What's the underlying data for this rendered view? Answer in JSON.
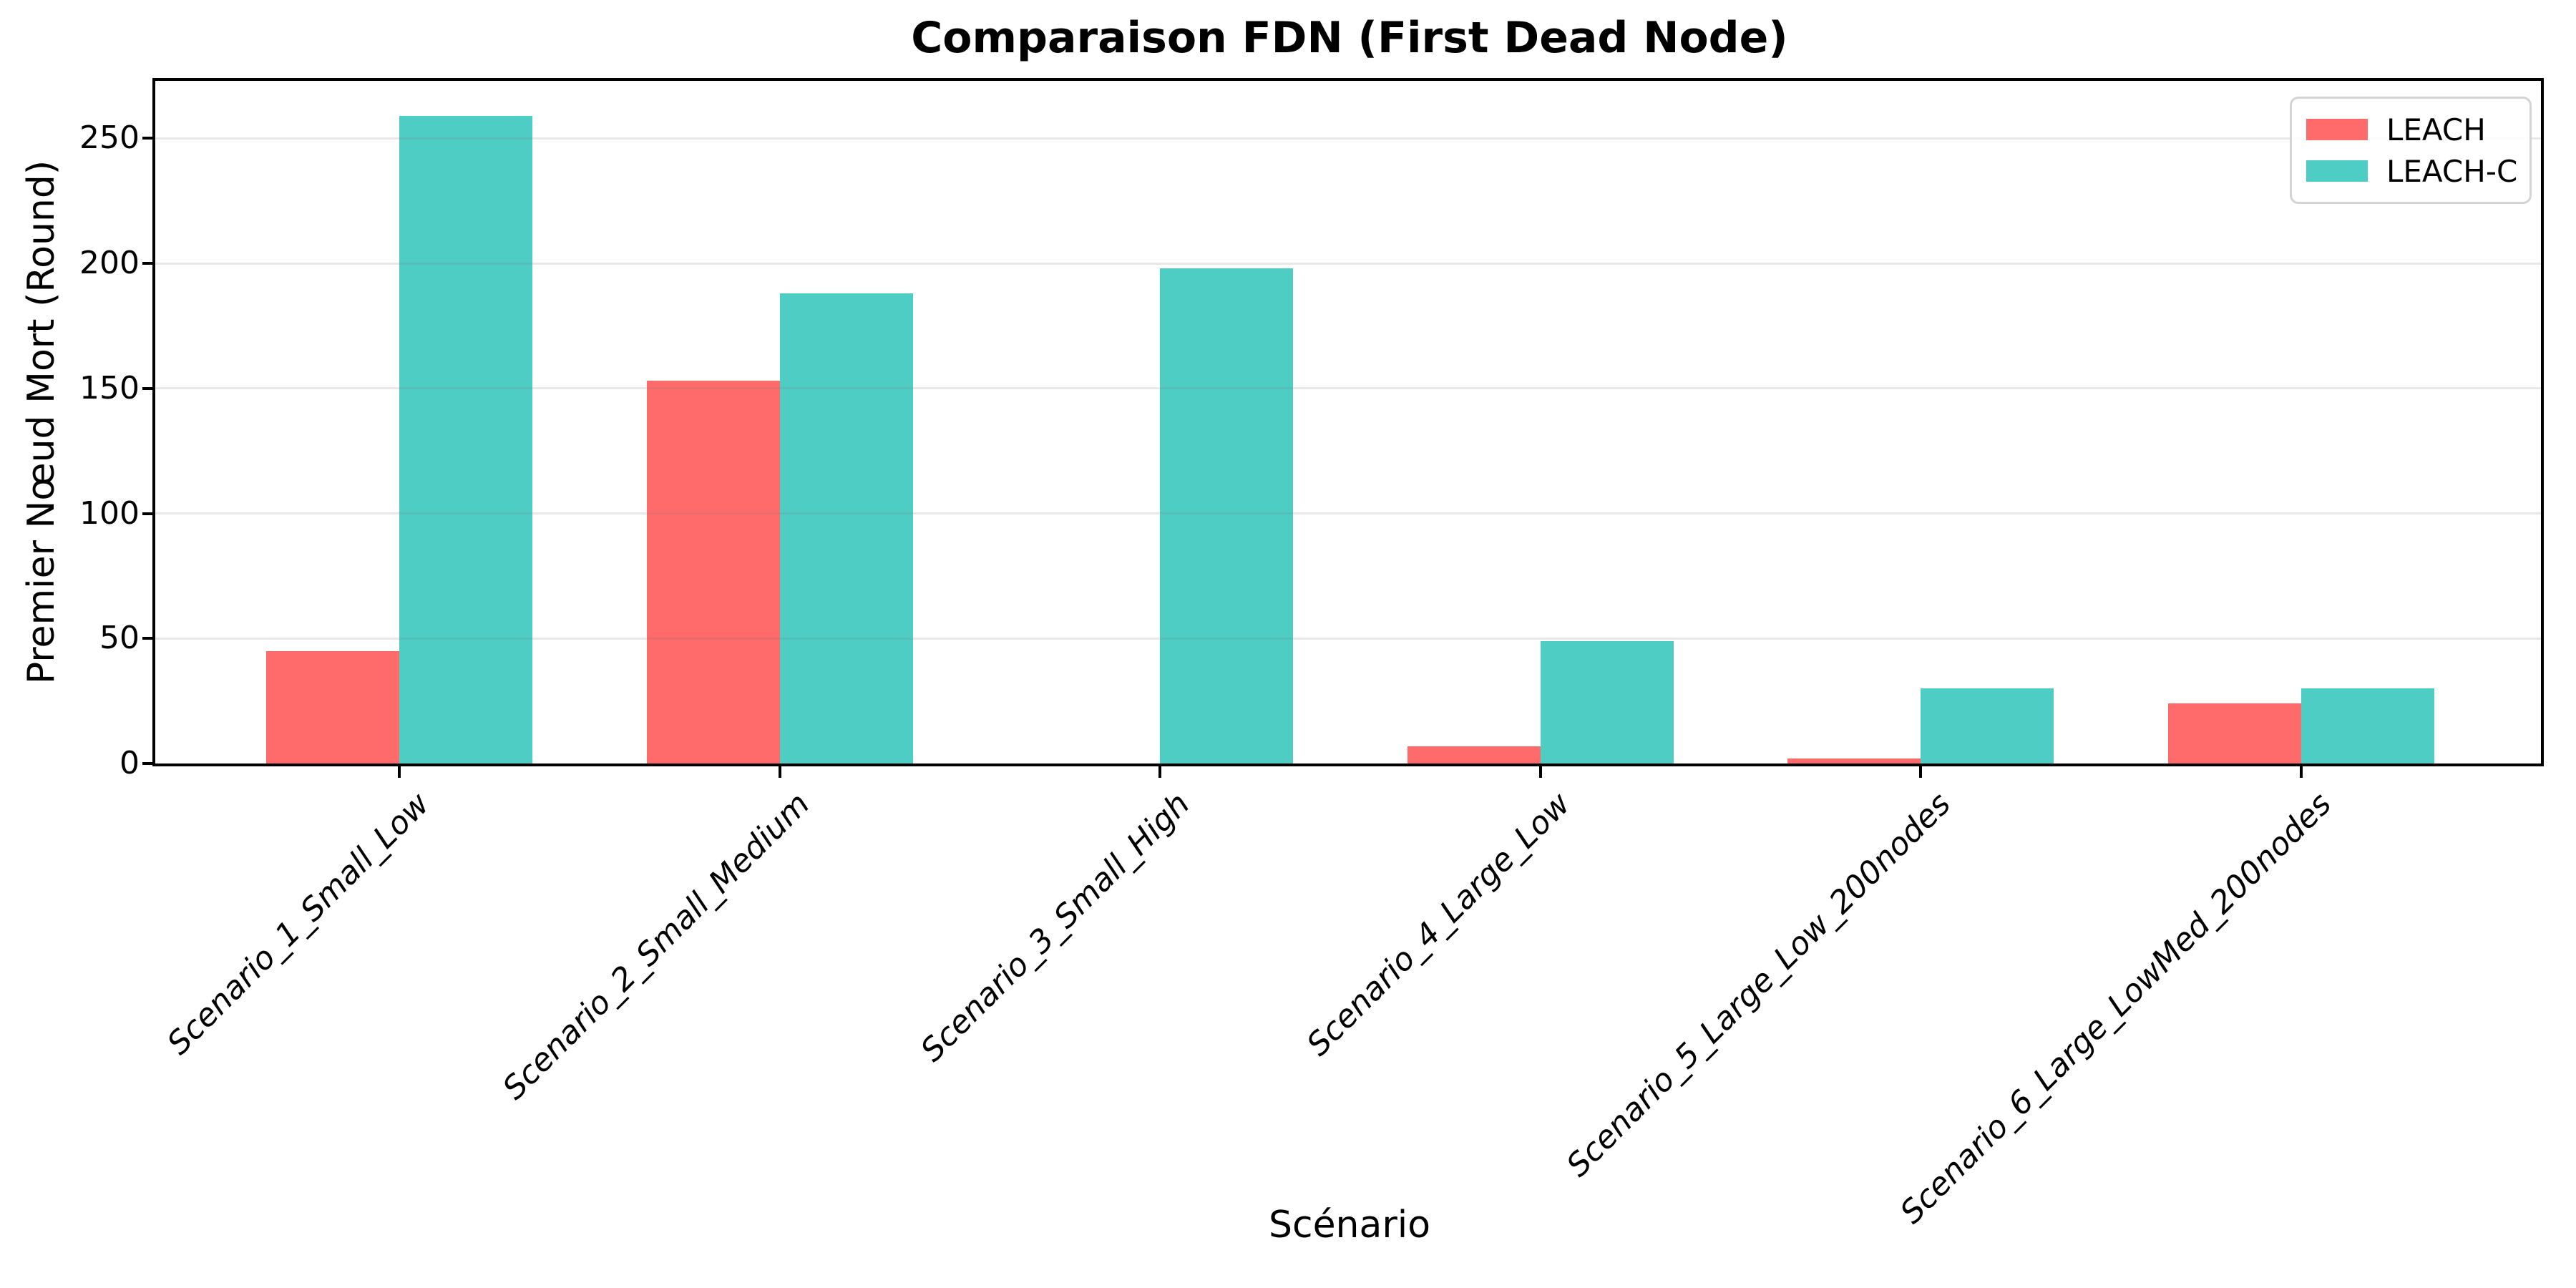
{
  "chart_data": {
    "type": "bar",
    "title": "Comparaison FDN (First Dead Node)",
    "xlabel": "Scénario",
    "ylabel": "Premier Nœud Mort (Round)",
    "categories": [
      "Scenario_1_Small_Low",
      "Scenario_2_Small_Medium",
      "Scenario_3_Small_High",
      "Scenario_4_Large_Low",
      "Scenario_5_Large_Low_200nodes",
      "Scenario_6_Large_LowMed_200nodes"
    ],
    "series": [
      {
        "name": "LEACH",
        "color": "#FF6B6B",
        "values": [
          45,
          153,
          0,
          7,
          2,
          24
        ]
      },
      {
        "name": "LEACH-C",
        "color": "#4ECDC4",
        "values": [
          259,
          188,
          198,
          49,
          30,
          30
        ]
      }
    ],
    "yticks": [
      0,
      50,
      100,
      150,
      200,
      250
    ],
    "ylim": [
      0,
      273
    ],
    "grid": "horizontal-light",
    "legend_position": "upper right",
    "bar_width_fraction": 0.35,
    "background_color": "#ffffff",
    "spine_color": "#000000"
  }
}
